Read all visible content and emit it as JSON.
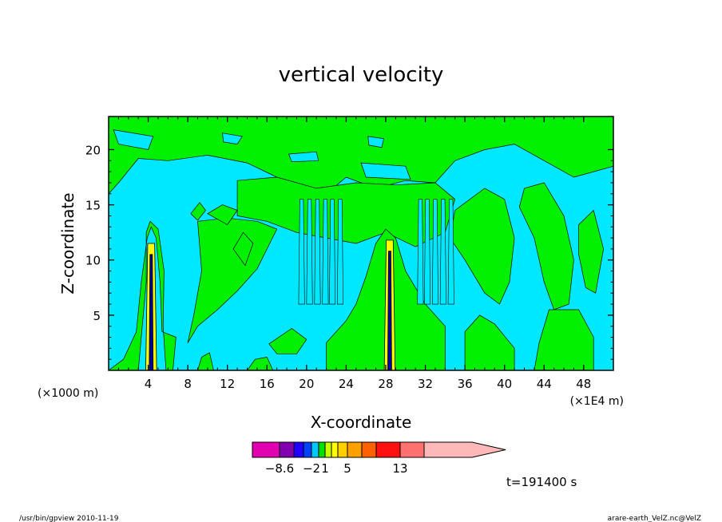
{
  "chart_data": {
    "type": "contour",
    "title": "vertical velocity",
    "xlabel": "X-coordinate",
    "ylabel": "Z-coordinate",
    "x_unit_left": "(×1000 m)",
    "x_unit_right": "(×1E4 m)",
    "xlim": [
      0,
      51
    ],
    "ylim": [
      0,
      23
    ],
    "x_ticks": [
      "4",
      "8",
      "12",
      "16",
      "20",
      "24",
      "28",
      "32",
      "36",
      "40",
      "44",
      "48"
    ],
    "y_ticks": [
      "5",
      "10",
      "15",
      "20"
    ],
    "time_label": "t=191400 s",
    "colorbar": {
      "tick_labels": [
        "−8.6",
        "−2",
        "1",
        "5",
        "13"
      ],
      "colors": [
        "#e000b0",
        "#8000b0",
        "#2000ff",
        "#0040ff",
        "#00c8ff",
        "#00e000",
        "#c8ff00",
        "#ffff00",
        "#ffd000",
        "#ffa000",
        "#ff6000",
        "#ff1010",
        "#ff7070",
        "#ffb8b8"
      ]
    },
    "fill_colors": {
      "background": "#00e8ff",
      "positive": "#00f000",
      "updraft_core": "#ffff00",
      "downdraft_core": "#0000a0"
    }
  },
  "footer": {
    "left": "/usr/bin/gpview   2010-11-19",
    "right": "arare-earth_VelZ.nc@VelZ"
  }
}
